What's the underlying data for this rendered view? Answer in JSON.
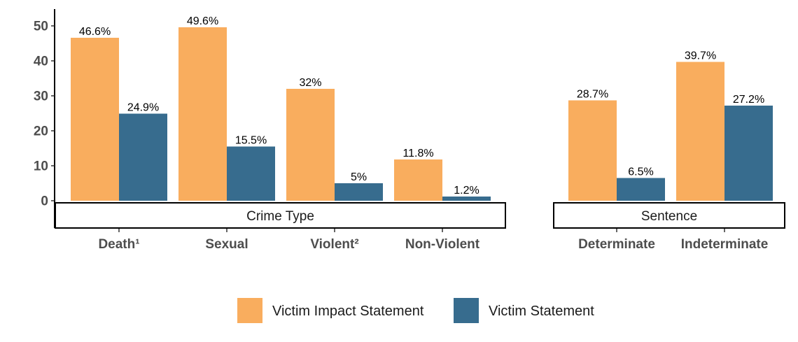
{
  "chart_data": {
    "type": "bar",
    "y_axis": {
      "ylim": [
        0,
        50
      ],
      "ticks": [
        0,
        10,
        20,
        30,
        40,
        50
      ]
    },
    "grid": false,
    "legend_position": "bottom",
    "series": [
      {
        "name": "Victim Impact Statement",
        "color": "#F9AD5E"
      },
      {
        "name": "Victim Statement",
        "color": "#376C8E"
      }
    ],
    "panels": [
      {
        "strip_label": "Crime Type",
        "categories": [
          "Death¹",
          "Sexual",
          "Violent²",
          "Non-Violent"
        ],
        "values": [
          [
            46.6,
            49.6,
            32,
            11.8
          ],
          [
            24.9,
            15.5,
            5,
            1.2
          ]
        ],
        "labels": [
          [
            "46.6%",
            "49.6%",
            "32%",
            "11.8%"
          ],
          [
            "24.9%",
            "15.5%",
            "5%",
            "1.2%"
          ]
        ]
      },
      {
        "strip_label": "Sentence",
        "categories": [
          "Determinate",
          "Indeterminate"
        ],
        "values": [
          [
            28.7,
            39.7
          ],
          [
            6.5,
            27.2
          ]
        ],
        "labels": [
          [
            "28.7%",
            "39.7%"
          ],
          [
            "6.5%",
            "27.2%"
          ]
        ]
      }
    ]
  }
}
